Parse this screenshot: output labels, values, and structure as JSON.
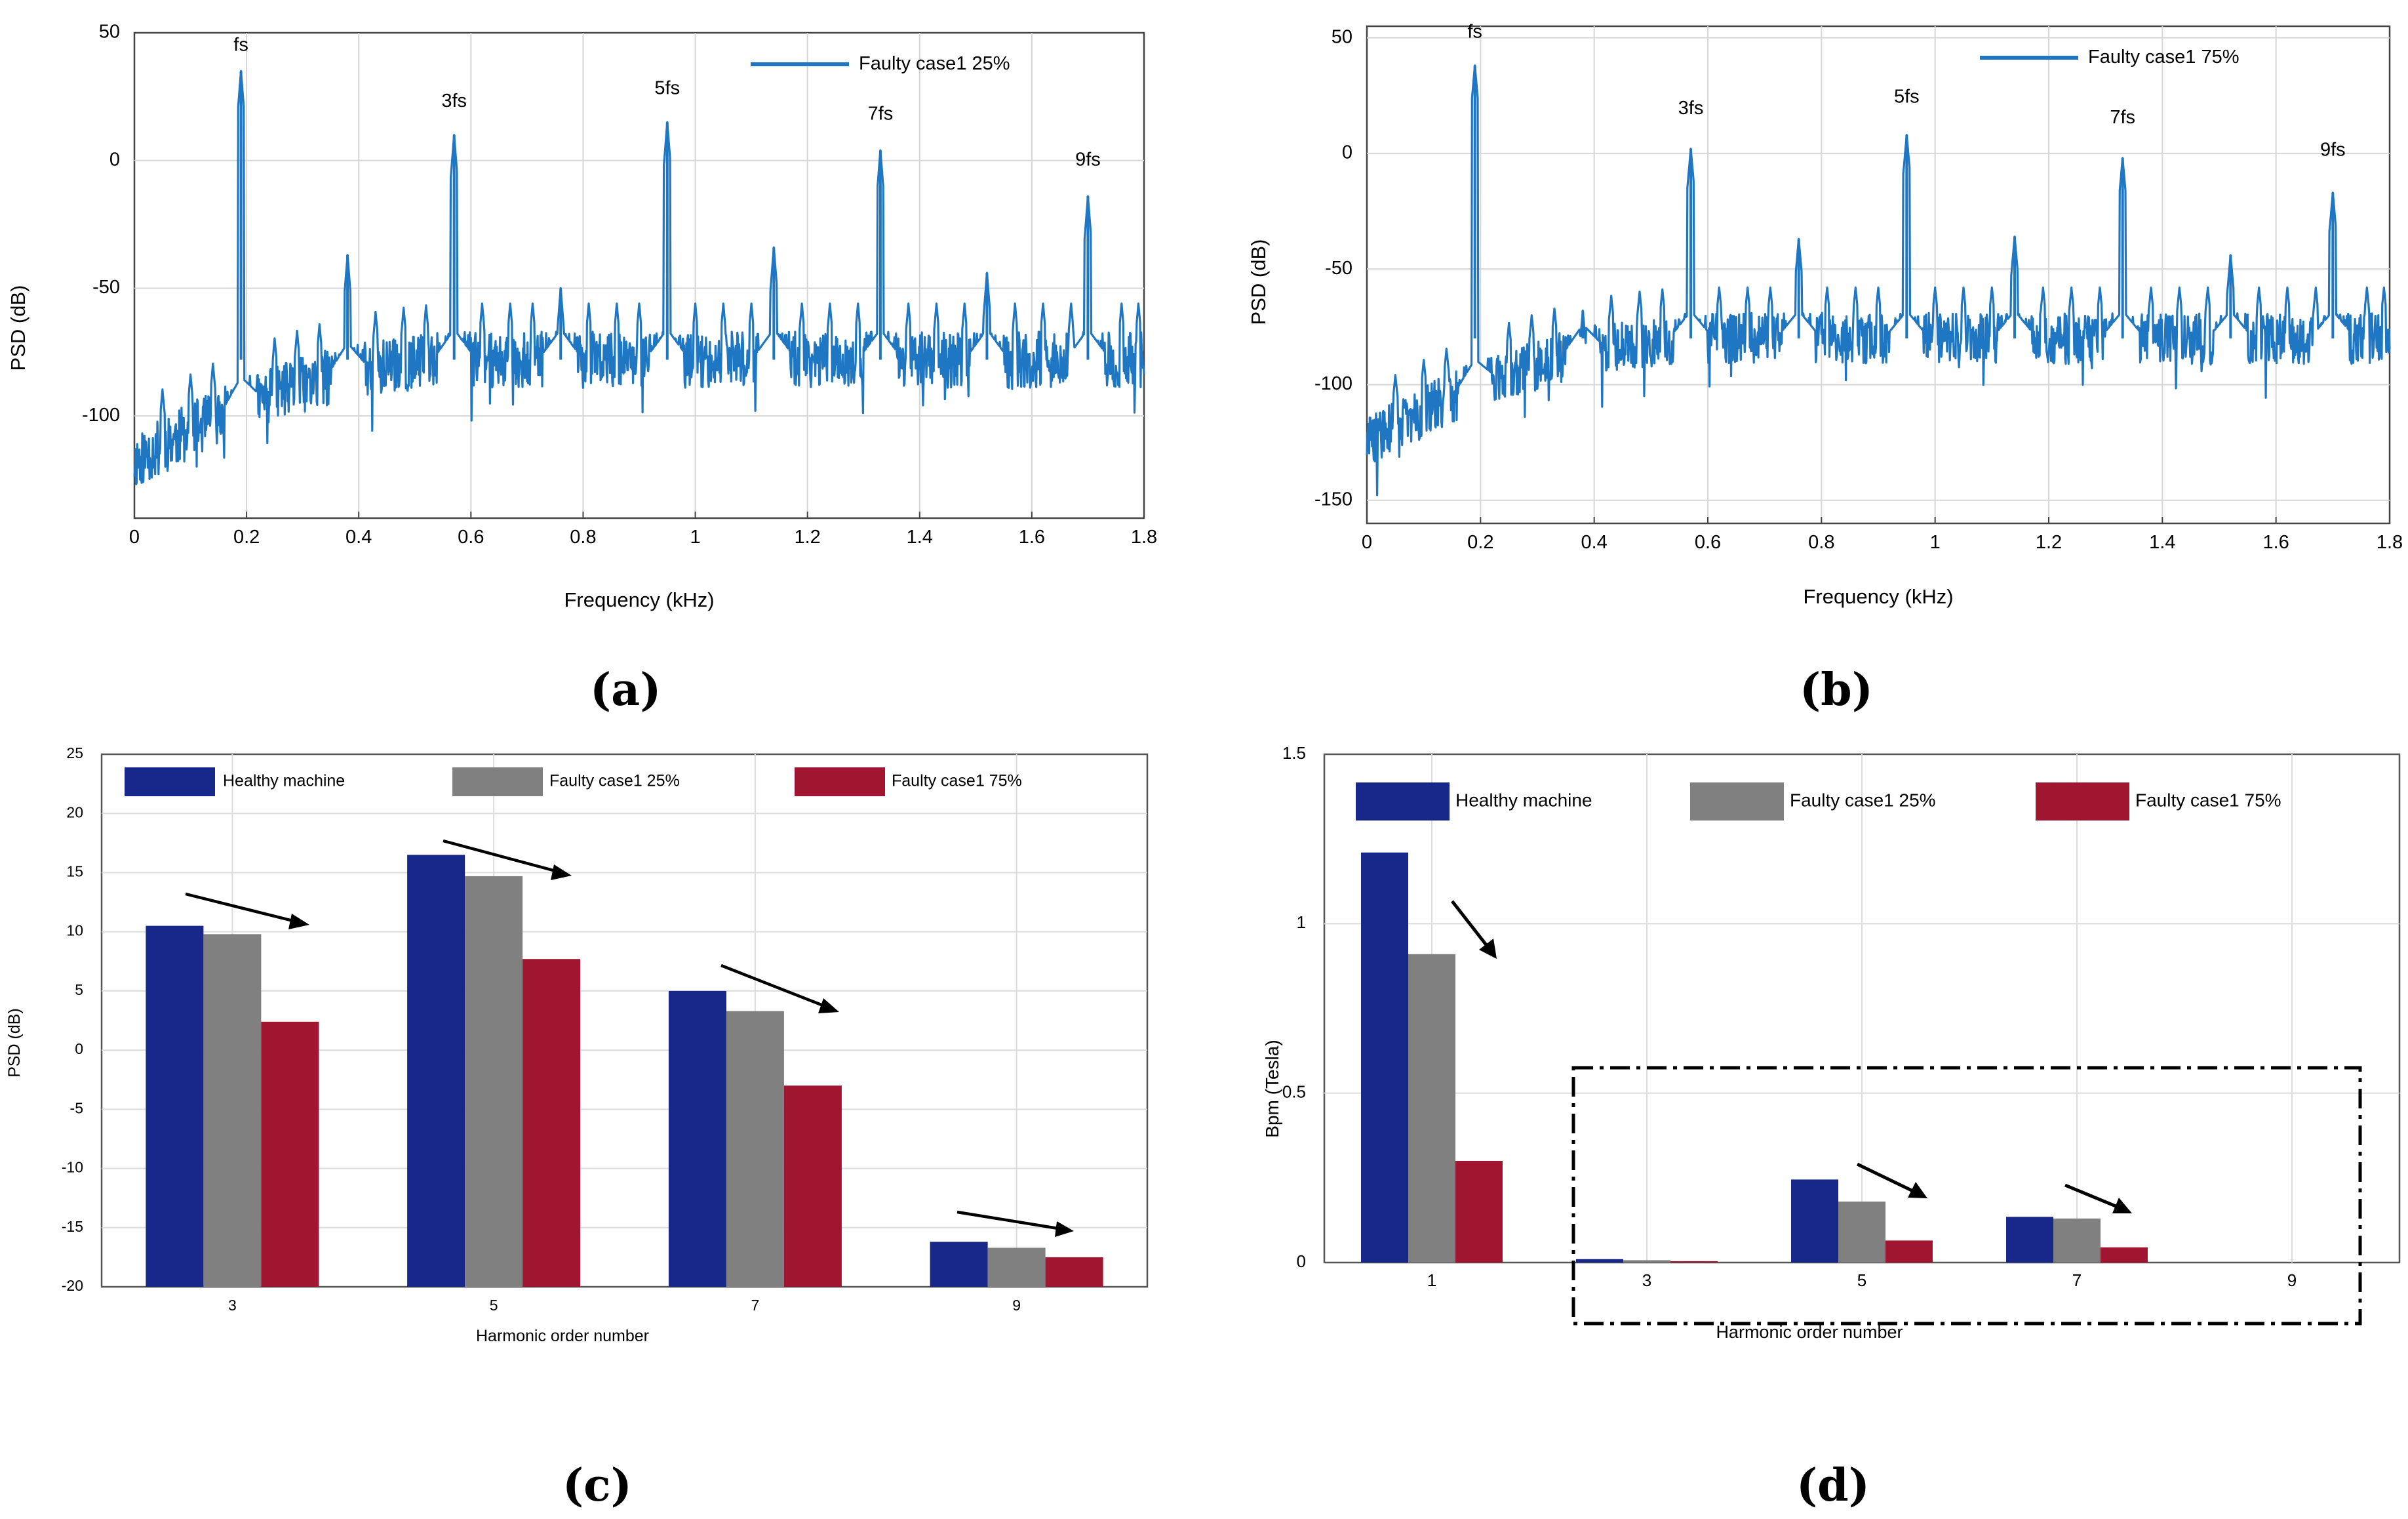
{
  "panels": {
    "a": {
      "caption": "(a)",
      "chart_data": {
        "type": "line",
        "title": "",
        "xlabel": "Frequency (kHz)",
        "ylabel": "PSD (dB)",
        "xlim": [
          0,
          1.8
        ],
        "ylim": [
          -140,
          50
        ],
        "xticks": [
          "0",
          "0.2",
          "0.4",
          "0.6",
          "0.8",
          "1",
          "1.2",
          "1.4",
          "1.6",
          "1.8"
        ],
        "yticks": [
          "50",
          "0",
          "-50",
          "-100"
        ],
        "grid": true,
        "legend": "top-right",
        "series": [
          {
            "name": "Faulty case1 25%",
            "color": "#1f77c4"
          }
        ],
        "peaks": [
          {
            "x": 0.19,
            "y": 35
          },
          {
            "x": 0.38,
            "y": -37
          },
          {
            "x": 0.57,
            "y": 10
          },
          {
            "x": 0.76,
            "y": -50
          },
          {
            "x": 0.95,
            "y": 15
          },
          {
            "x": 1.14,
            "y": -34
          },
          {
            "x": 1.33,
            "y": 4
          },
          {
            "x": 1.52,
            "y": -44
          },
          {
            "x": 1.7,
            "y": -14
          }
        ],
        "noise_floor": {
          "start": -118,
          "end": -78
        },
        "annotations": [
          {
            "text": "fs",
            "x": 0.19,
            "y": 43
          },
          {
            "text": "3fs",
            "x": 0.57,
            "y": 21
          },
          {
            "text": "5fs",
            "x": 0.95,
            "y": 26
          },
          {
            "text": "7fs",
            "x": 1.33,
            "y": 16
          },
          {
            "text": "9fs",
            "x": 1.7,
            "y": -2
          }
        ]
      }
    },
    "b": {
      "caption": "(b)",
      "chart_data": {
        "type": "line",
        "title": "",
        "xlabel": "Frequency (kHz)",
        "ylabel": "PSD (dB)",
        "xlim": [
          0,
          1.8
        ],
        "ylim": [
          -160,
          55
        ],
        "xticks": [
          "0",
          "0.2",
          "0.4",
          "0.6",
          "0.8",
          "1",
          "1.2",
          "1.4",
          "1.6",
          "1.8"
        ],
        "yticks": [
          "50",
          "0",
          "-50",
          "-100",
          "-150"
        ],
        "grid": true,
        "legend": "top-right",
        "series": [
          {
            "name": "Faulty case1 75%",
            "color": "#1f77c4"
          }
        ],
        "peaks": [
          {
            "x": 0.19,
            "y": 38
          },
          {
            "x": 0.38,
            "y": -68
          },
          {
            "x": 0.57,
            "y": 2
          },
          {
            "x": 0.76,
            "y": -37
          },
          {
            "x": 0.95,
            "y": 8
          },
          {
            "x": 1.14,
            "y": -36
          },
          {
            "x": 1.33,
            "y": -2
          },
          {
            "x": 1.52,
            "y": -44
          },
          {
            "x": 1.7,
            "y": -17
          }
        ],
        "noise_floor": {
          "start": -125,
          "end": -80
        },
        "annotations": [
          {
            "text": "fs",
            "x": 0.19,
            "y": 50
          },
          {
            "text": "3fs",
            "x": 0.57,
            "y": 17
          },
          {
            "text": "5fs",
            "x": 0.95,
            "y": 22
          },
          {
            "text": "7fs",
            "x": 1.33,
            "y": 13
          },
          {
            "text": "9fs",
            "x": 1.7,
            "y": -1
          }
        ]
      }
    },
    "c": {
      "caption": "(c)",
      "chart_data": {
        "type": "bar",
        "title": "",
        "xlabel": "Harmonic order number",
        "ylabel": "PSD (dB)",
        "categories": [
          "3",
          "5",
          "7",
          "9"
        ],
        "ylim": [
          -20,
          25
        ],
        "yticks": [
          "25",
          "20",
          "15",
          "10",
          "5",
          "0",
          "-5",
          "-10",
          "-15",
          "-20"
        ],
        "grid": true,
        "legend": "top",
        "series": [
          {
            "name": "Healthy machine",
            "color": "#17288a",
            "values": [
              10.5,
              16.5,
              5,
              -16.2
            ]
          },
          {
            "name": "Faulty case1 25%",
            "color": "#808080",
            "values": [
              9.8,
              14.7,
              3.3,
              -16.7
            ]
          },
          {
            "name": "Faulty case1 75%",
            "color": "#a01530",
            "values": [
              2.4,
              7.7,
              -3,
              -17.5
            ]
          }
        ]
      }
    },
    "d": {
      "caption": "(d)",
      "chart_data": {
        "type": "bar",
        "title": "",
        "xlabel": "Harmonic order number",
        "ylabel": "Bpm (Tesla)",
        "categories": [
          "1",
          "3",
          "5",
          "7",
          "9"
        ],
        "ylim": [
          0,
          1.5
        ],
        "yticks": [
          "1.5",
          "1",
          "0.5",
          "0"
        ],
        "grid": true,
        "legend": "top",
        "series": [
          {
            "name": "Healthy machine",
            "color": "#17288a",
            "values": [
              1.21,
              0.01,
              0.245,
              0.135,
              0
            ]
          },
          {
            "name": "Faulty case1 25%",
            "color": "#808080",
            "values": [
              0.91,
              0.007,
              0.18,
              0.13,
              0
            ]
          },
          {
            "name": "Faulty case1 75%",
            "color": "#a01530",
            "values": [
              0.3,
              0.004,
              0.065,
              0.045,
              0
            ]
          }
        ]
      }
    }
  }
}
